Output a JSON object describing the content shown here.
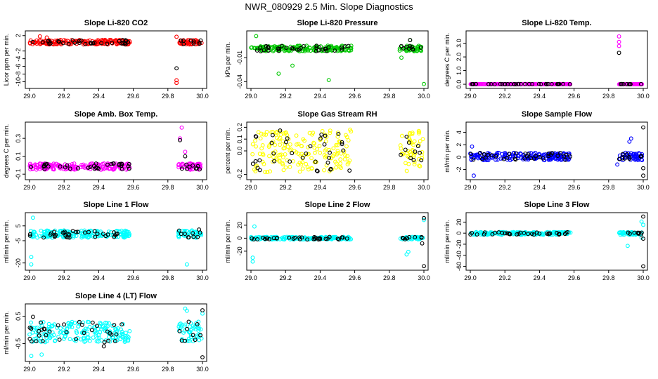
{
  "figure_title": "NWR_080929  2.5 Min. Slope Diagnostics",
  "colors": {
    "red": "#ff0000",
    "green": "#00c800",
    "magenta": "#ff00ff",
    "yellow": "#ffff00",
    "blue": "#0000ff",
    "cyan": "#00ffff",
    "black": "#000000"
  },
  "chart_data": [
    {
      "type": "scatter",
      "title": "Slope Li-820 CO2",
      "ylabel": "Licor ppm per min.",
      "xlim": [
        29.0,
        30.0
      ],
      "ylim": [
        -11,
        2.5
      ],
      "xticks": [
        "29.0",
        "29.2",
        "29.4",
        "29.6",
        "29.8",
        "30.0"
      ],
      "yticks": [
        2,
        -2,
        -4,
        -6,
        -8,
        -10
      ],
      "ytick_labels": [
        "2",
        "-2",
        "-4",
        "-6",
        "-8",
        "-10"
      ],
      "color": "red",
      "band": [
        -0.3,
        0.9
      ],
      "outliers": [
        [
          29.06,
          1.8
        ],
        [
          29.1,
          1.5
        ],
        [
          29.85,
          -9.6
        ],
        [
          29.85,
          -10.3
        ],
        [
          29.85,
          1.7
        ]
      ],
      "black_outliers": [
        [
          29.85,
          -6.5
        ]
      ]
    },
    {
      "type": "scatter",
      "title": "Slope Li-820 Pressure",
      "ylabel": "kPa per min.",
      "xlim": [
        29.0,
        30.0
      ],
      "ylim": [
        -0.045,
        0.02
      ],
      "xticks": [
        "29.0",
        "29.2",
        "29.4",
        "29.6",
        "29.8",
        "30.0"
      ],
      "yticks": [
        -0.01,
        -0.04
      ],
      "ytick_labels": [
        "-0.01",
        "-0.04"
      ],
      "color": "green",
      "band": [
        -0.002,
        0.005
      ],
      "outliers": [
        [
          29.03,
          0.017
        ],
        [
          29.16,
          -0.03
        ],
        [
          29.24,
          -0.02
        ],
        [
          29.45,
          -0.038
        ],
        [
          29.87,
          -0.01
        ],
        [
          30.0,
          -0.043
        ],
        [
          29.92,
          0.012
        ]
      ],
      "black_outliers": [
        [
          29.92,
          0.012
        ]
      ]
    },
    {
      "type": "scatter",
      "title": "Slope Li-820 Temp.",
      "ylabel": "degrees C per min.",
      "xlim": [
        29.0,
        30.0
      ],
      "ylim": [
        -0.1,
        3.7
      ],
      "xticks": [
        "29.0",
        "29.2",
        "29.4",
        "29.6",
        "29.8",
        "30.0"
      ],
      "yticks": [
        0,
        1,
        2,
        3
      ],
      "ytick_labels": [
        "0.0",
        "1.0",
        "2.0",
        "3.0"
      ],
      "color": "magenta",
      "band": [
        0.0,
        0.02
      ],
      "outliers": [
        [
          29.86,
          3.5
        ],
        [
          29.86,
          3.1
        ],
        [
          29.86,
          2.8
        ]
      ],
      "black_outliers": [
        [
          29.86,
          2.3
        ]
      ]
    },
    {
      "type": "scatter",
      "title": "Slope Amb. Box Temp.",
      "ylabel": "degrees C per min.",
      "xlim": [
        29.0,
        30.0
      ],
      "ylim": [
        -0.13,
        0.45
      ],
      "xticks": [
        "29.0",
        "29.2",
        "29.4",
        "29.6",
        "29.8",
        "30.0"
      ],
      "yticks": [
        -0.1,
        0.1,
        0.3
      ],
      "ytick_labels": [
        "-0.1",
        "0.1",
        "0.3"
      ],
      "color": "magenta",
      "band": [
        -0.05,
        0.02
      ],
      "outliers": [
        [
          29.88,
          0.42
        ],
        [
          29.87,
          0.3
        ],
        [
          29.9,
          0.15
        ],
        [
          29.93,
          -0.05
        ]
      ],
      "black_outliers": [
        [
          29.87,
          0.28
        ],
        [
          29.9,
          0.1
        ]
      ]
    },
    {
      "type": "scatter",
      "title": "Slope Gas Stream RH",
      "ylabel": "percent per min.",
      "xlim": [
        29.0,
        30.0
      ],
      "ylim": [
        -0.22,
        0.22
      ],
      "xticks": [
        "29.0",
        "29.2",
        "29.4",
        "29.6",
        "29.8",
        "30.0"
      ],
      "yticks": [
        -0.2,
        0,
        0.1,
        0.2
      ],
      "ytick_labels": [
        "-0.2",
        "0.0",
        "0.1",
        "0.2"
      ],
      "color": "yellow",
      "band": [
        -0.18,
        0.18
      ],
      "outliers": [],
      "black_outliers": [
        [
          29.03,
          0.12
        ],
        [
          29.05,
          -0.08
        ],
        [
          29.9,
          0.12
        ]
      ]
    },
    {
      "type": "scatter",
      "title": "Slope Sample Flow",
      "ylabel": "ml/min per min.",
      "xlim": [
        29.0,
        30.0
      ],
      "ylim": [
        -3.2,
        5.2
      ],
      "xticks": [
        "29.0",
        "29.2",
        "29.4",
        "29.6",
        "29.8",
        "30.0"
      ],
      "yticks": [
        4,
        2,
        0,
        -2
      ],
      "ytick_labels": [
        "4",
        "2",
        "0",
        "-2"
      ],
      "color": "blue",
      "band": [
        -0.5,
        0.7
      ],
      "outliers": [
        [
          29.01,
          1.7
        ],
        [
          29.02,
          -3.0
        ],
        [
          29.92,
          2.5
        ],
        [
          29.93,
          3.0
        ],
        [
          29.85,
          -1.2
        ]
      ],
      "black_outliers": [
        [
          30.0,
          4.8
        ],
        [
          30.0,
          -1.8
        ],
        [
          30.0,
          -3.0
        ]
      ]
    },
    {
      "type": "scatter",
      "title": "Slope Line 1 Flow",
      "ylabel": "ml/min per min.",
      "xlim": [
        29.0,
        30.0
      ],
      "ylim": [
        -23,
        12
      ],
      "xticks": [
        "29.0",
        "29.2",
        "29.4",
        "29.6",
        "29.8",
        "30.0"
      ],
      "yticks": [
        5,
        -5,
        -20
      ],
      "ytick_labels": [
        "5",
        "-5",
        "-20"
      ],
      "color": "cyan",
      "band": [
        -3,
        2
      ],
      "outliers": [
        [
          29.02,
          10.5
        ],
        [
          29.01,
          -16
        ],
        [
          29.01,
          -21
        ],
        [
          29.91,
          -21
        ],
        [
          29.92,
          -3
        ]
      ],
      "black_outliers": [
        [
          29.98,
          2.5
        ]
      ]
    },
    {
      "type": "scatter",
      "title": "Slope Line 2 Flow",
      "ylabel": "ml/min per min.",
      "xlim": [
        29.0,
        30.0
      ],
      "ylim": [
        -45,
        35
      ],
      "xticks": [
        "29.0",
        "29.2",
        "29.4",
        "29.6",
        "29.8",
        "30.0"
      ],
      "yticks": [
        20,
        0,
        -20
      ],
      "ytick_labels": [
        "20",
        "0",
        "-20"
      ],
      "color": "cyan",
      "band": [
        -2,
        2
      ],
      "outliers": [
        [
          29.02,
          18
        ],
        [
          29.01,
          -30
        ],
        [
          29.01,
          -36
        ],
        [
          29.91,
          -21
        ],
        [
          29.9,
          -25
        ],
        [
          30.0,
          28
        ]
      ],
      "black_outliers": [
        [
          30.0,
          31
        ],
        [
          30.0,
          -43
        ],
        [
          29.99,
          -8
        ]
      ]
    },
    {
      "type": "scatter",
      "title": "Slope Line 3 Flow",
      "ylabel": "ml/min per min.",
      "xlim": [
        29.0,
        30.0
      ],
      "ylim": [
        -62,
        32
      ],
      "xticks": [
        "29.0",
        "29.2",
        "29.4",
        "29.6",
        "29.8",
        "30.0"
      ],
      "yticks": [
        20,
        0,
        -20,
        -40,
        -60
      ],
      "ytick_labels": [
        "20",
        "0",
        "-20",
        "-40",
        "-60"
      ],
      "color": "cyan",
      "band": [
        -3,
        2
      ],
      "outliers": [
        [
          29.91,
          -23
        ],
        [
          30.0,
          15
        ],
        [
          29.99,
          21
        ],
        [
          29.99,
          -8
        ]
      ],
      "black_outliers": [
        [
          30.0,
          30
        ],
        [
          30.0,
          -60
        ],
        [
          30.0,
          -10
        ]
      ]
    },
    {
      "type": "scatter",
      "title": "Slope Line 4 (LT) Flow",
      "ylabel": "ml/min per min.",
      "xlim": [
        29.0,
        30.0
      ],
      "ylim": [
        -1.05,
        0.85
      ],
      "xticks": [
        "29.0",
        "29.2",
        "29.4",
        "29.6",
        "29.8",
        "30.0"
      ],
      "yticks": [
        0.5,
        -0.5
      ],
      "ytick_labels": [
        "0.5",
        "-0.5"
      ],
      "color": "cyan",
      "band": [
        -0.45,
        0.3
      ],
      "outliers": [
        [
          29.01,
          -0.95
        ],
        [
          29.07,
          -0.9
        ],
        [
          29.9,
          0.78
        ],
        [
          29.91,
          0.7
        ],
        [
          30.0,
          0.6
        ]
      ],
      "black_outliers": [
        [
          29.02,
          0.48
        ],
        [
          30.0,
          0.72
        ],
        [
          30.0,
          -1.0
        ],
        [
          29.43,
          -0.6
        ]
      ]
    }
  ]
}
